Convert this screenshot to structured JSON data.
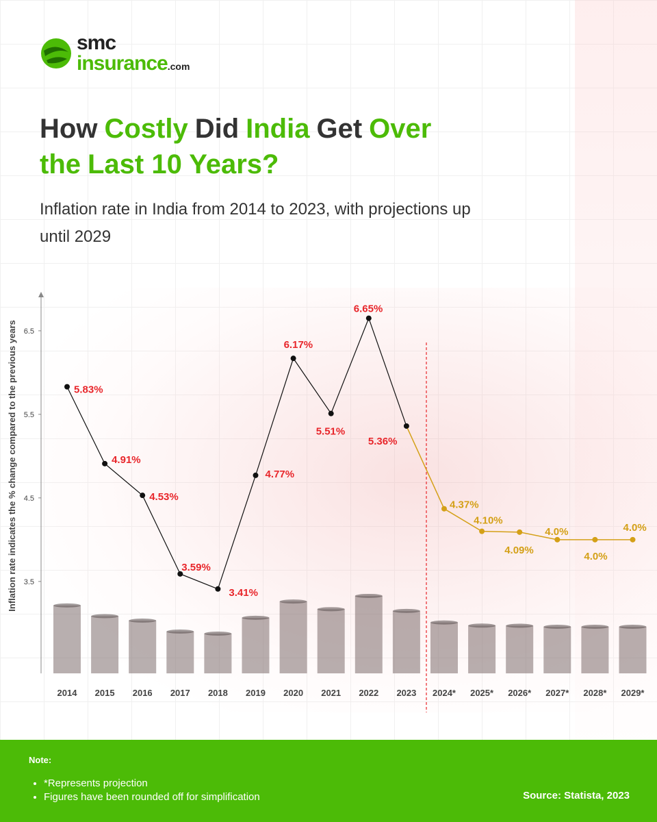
{
  "header": {
    "logo_main": "smc",
    "logo_sub": "insurance",
    "logo_domain": ".com"
  },
  "chart_data": {
    "type": "line",
    "title_segments": [
      {
        "text": "How",
        "color": "#333333"
      },
      {
        "text": "Costly",
        "color": "#4cbb07"
      },
      {
        "text": "Did",
        "color": "#333333"
      },
      {
        "text": "India",
        "color": "#4cbb07"
      },
      {
        "text": "Get",
        "color": "#333333"
      },
      {
        "text": "Over the",
        "color": "#4cbb07"
      },
      {
        "text": "Last 10 Years?",
        "color": "#4cbb07"
      }
    ],
    "subtitle": "Inflation rate in India from 2014 to 2023, with projections up until 2029",
    "ylabel": "Inflation rate indicates the % change compared to the previous years",
    "categories": [
      "2014",
      "2015",
      "2016",
      "2017",
      "2018",
      "2019",
      "2020",
      "2021",
      "2022",
      "2023",
      "2024*",
      "2025*",
      "2026*",
      "2027*",
      "2028*",
      "2029*"
    ],
    "series": [
      {
        "color": "#111111",
        "label_color": "#e8262b",
        "values": [
          5.83,
          4.91,
          4.53,
          3.59,
          3.41,
          4.77,
          6.17,
          5.51,
          6.65,
          5.36,
          null,
          null,
          null,
          null,
          null,
          null
        ],
        "value_labels": [
          "5.83%",
          "4.91%",
          "4.53%",
          "3.59%",
          "3.41%",
          "4.77%",
          "6.17%",
          "5.51%",
          "6.65%",
          "5.36%",
          null,
          null,
          null,
          null,
          null,
          null
        ]
      },
      {
        "color": "#d4a017",
        "label_color": "#d4a017",
        "values": [
          null,
          null,
          null,
          null,
          null,
          null,
          null,
          null,
          null,
          null,
          4.37,
          4.1,
          4.09,
          4.0,
          4.0,
          4.0
        ],
        "value_labels": [
          null,
          null,
          null,
          null,
          null,
          null,
          null,
          null,
          null,
          null,
          "4.37%",
          "4.10%",
          "4.09%",
          "4.0%",
          "4.0%",
          "4.0%"
        ]
      }
    ],
    "ylim": [
      2.4,
      6.95
    ],
    "yticks": [
      3.5,
      4.5,
      5.5,
      6.5
    ]
  },
  "footer": {
    "note_title": "Note:",
    "notes": [
      "*Represents projection",
      "Figures have been rounded off for simplification"
    ],
    "source": "Source: Statista, 2023"
  }
}
